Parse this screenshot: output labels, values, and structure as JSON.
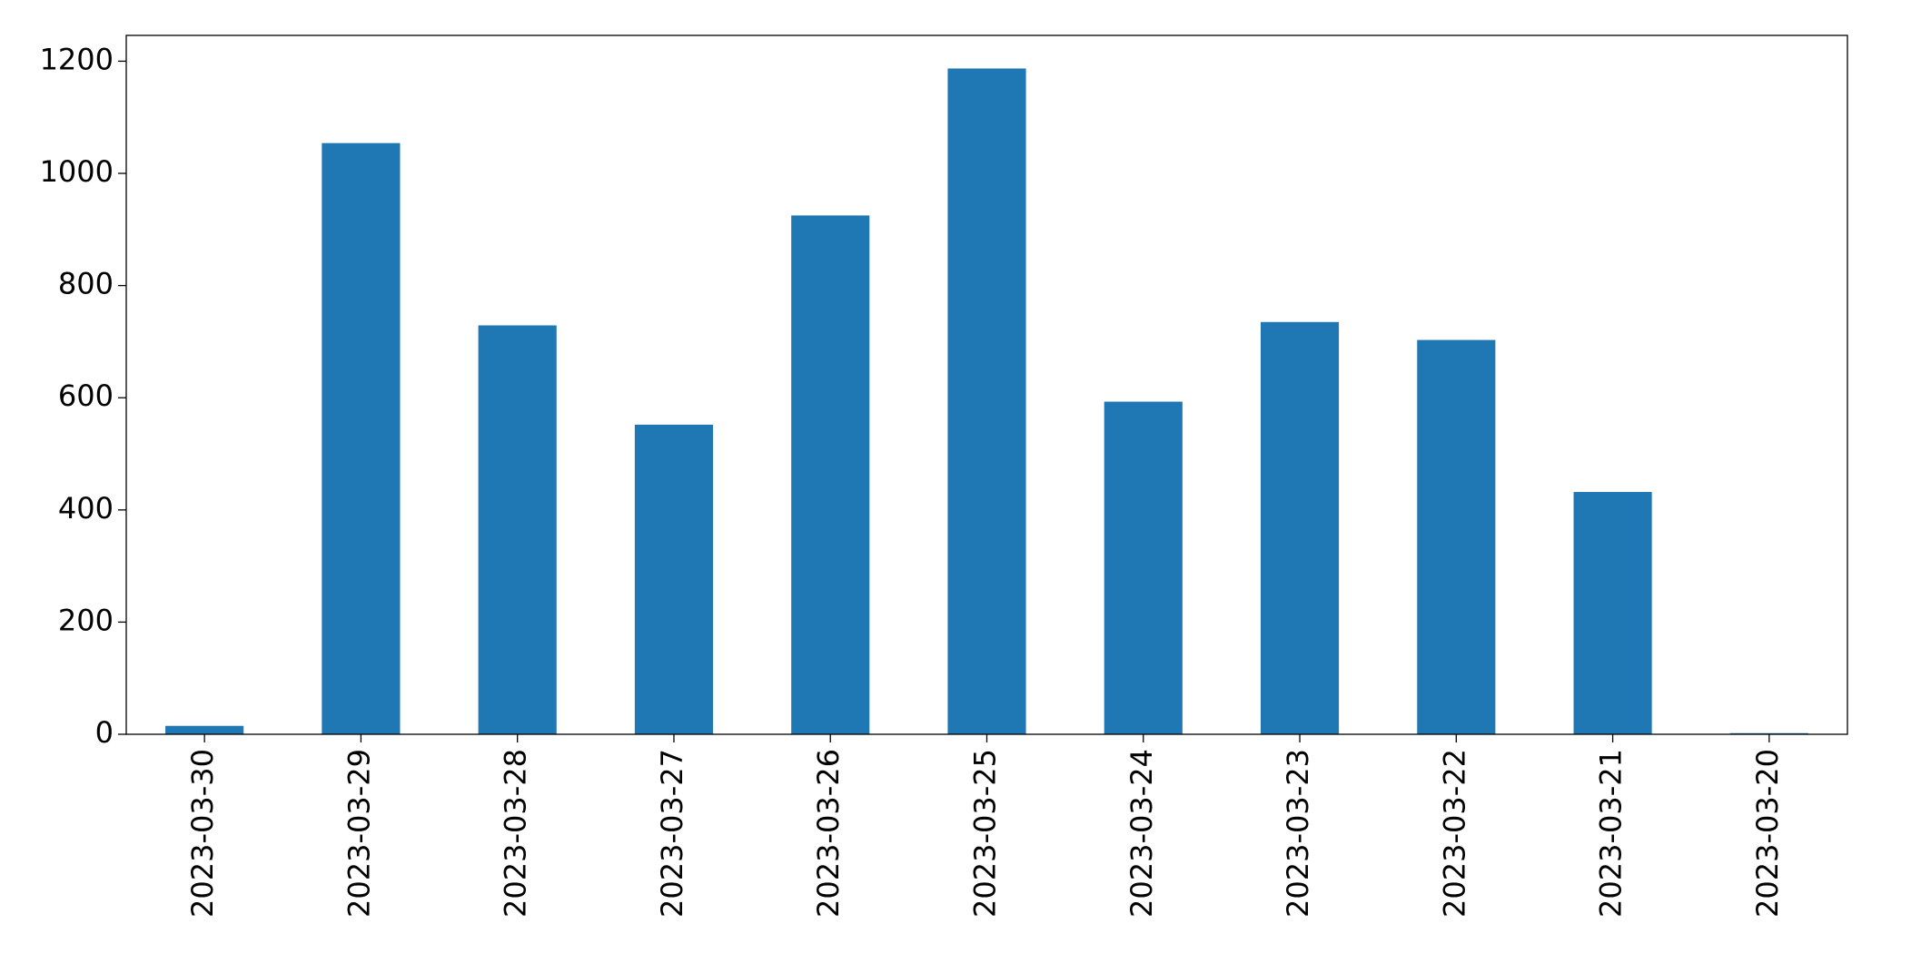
{
  "chart_data": {
    "type": "bar",
    "categories": [
      "2023-03-30",
      "2023-03-29",
      "2023-03-28",
      "2023-03-27",
      "2023-03-26",
      "2023-03-25",
      "2023-03-24",
      "2023-03-23",
      "2023-03-22",
      "2023-03-21",
      "2023-03-20"
    ],
    "values": [
      15,
      1054,
      729,
      552,
      925,
      1187,
      593,
      735,
      703,
      432,
      2
    ],
    "color": "#1f77b4",
    "ylim": [
      0,
      1246
    ],
    "yticks": [
      0,
      200,
      400,
      600,
      800,
      1000,
      1200
    ],
    "grid": false
  }
}
